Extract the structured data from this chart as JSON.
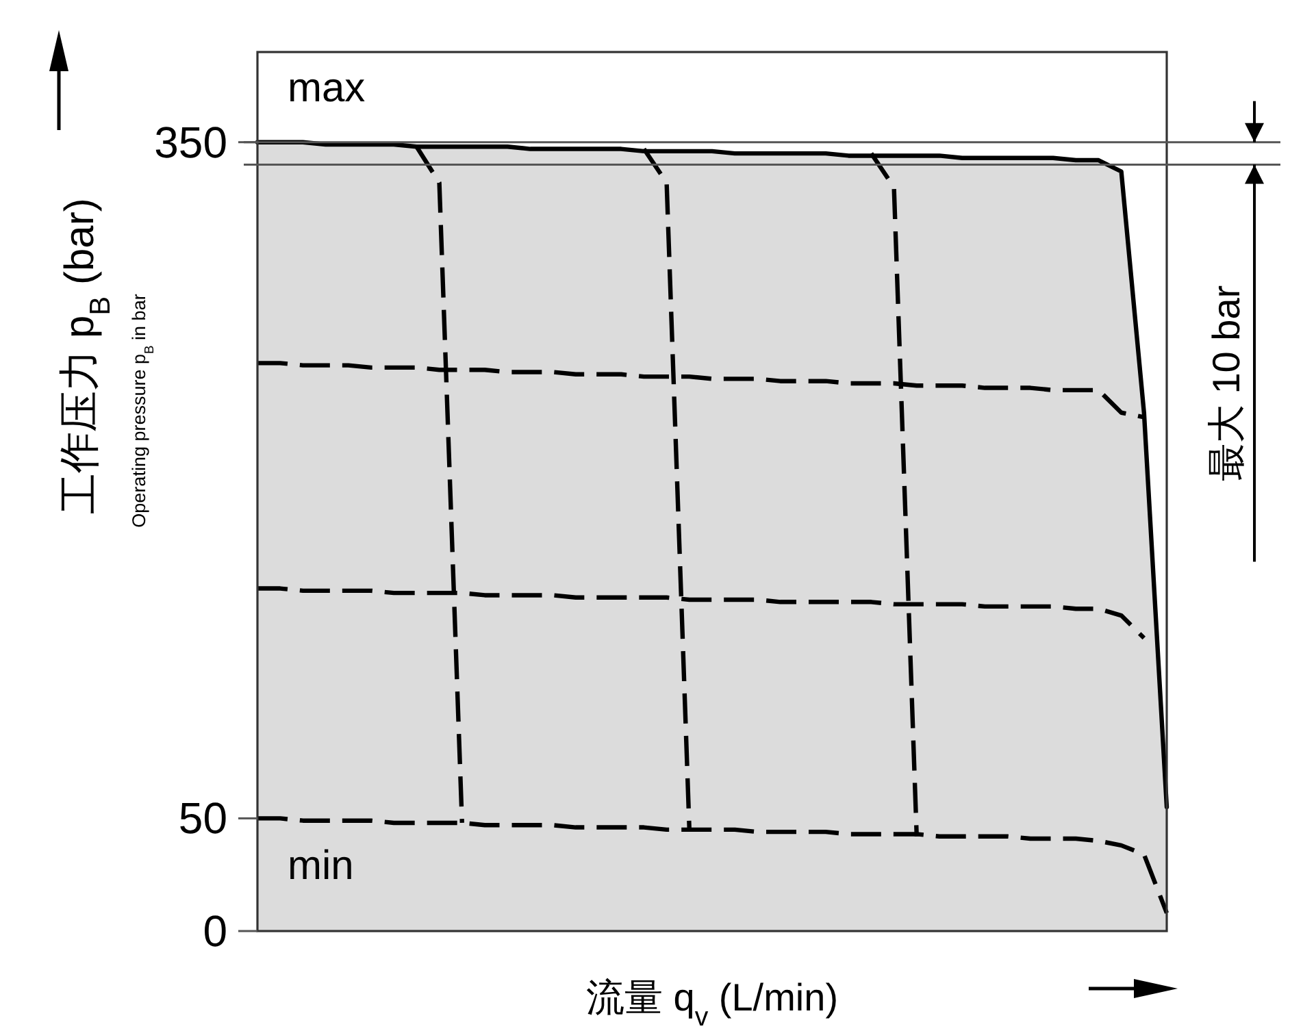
{
  "chart_data": {
    "type": "line",
    "ylabel": "工作压力 p$_{B}$ (bar)",
    "xlabel": "流量 q$_{v}$ (L/min)",
    "annotations": [
      "max",
      "min",
      "Operating pressure p$_{B}$ in bar",
      "最大 10 bar"
    ],
    "categories": [
      null,
      null,
      null,
      null,
      null,
      null,
      null,
      null,
      null,
      null,
      null,
      null,
      null,
      null,
      null,
      null,
      null,
      null,
      null,
      null,
      null,
      null,
      null,
      null,
      null,
      null,
      null,
      null,
      null,
      null,
      null,
      null,
      null,
      null,
      null,
      null,
      null,
      null,
      null,
      null,
      null
    ],
    "series": [
      {
        "type": "area",
        "color": "#dcdcdc",
        "line_style": "solid",
        "values": [
          350,
          350,
          350,
          349,
          349,
          349,
          349,
          348,
          348,
          348,
          348,
          348,
          347,
          347,
          347,
          347,
          347,
          346,
          346,
          346,
          346,
          345,
          345,
          345,
          345,
          345,
          344,
          344,
          344,
          344,
          344,
          343,
          343,
          343,
          343,
          343,
          342,
          342,
          337,
          230,
          55
        ]
      },
      {
        "color": "#000000",
        "line_style": "dashed",
        "values": [
          252,
          252,
          251,
          251,
          251,
          250,
          250,
          250,
          249,
          249,
          249,
          248,
          248,
          248,
          247,
          247,
          247,
          246,
          246,
          246,
          245,
          245,
          245,
          244,
          244,
          244,
          243,
          243,
          243,
          242,
          242,
          242,
          241,
          241,
          241,
          240,
          240,
          240,
          230,
          228,
          null
        ]
      },
      {
        "color": "#000000",
        "line_style": "dashed",
        "values": [
          152,
          152,
          151,
          151,
          151,
          151,
          150,
          150,
          150,
          150,
          149,
          149,
          149,
          149,
          148,
          148,
          148,
          148,
          148,
          147,
          147,
          147,
          147,
          146,
          146,
          146,
          146,
          146,
          145,
          145,
          145,
          145,
          144,
          144,
          144,
          144,
          143,
          143,
          140,
          130,
          null
        ]
      },
      {
        "color": "#000000",
        "line_style": "dashed",
        "values": [
          50,
          50,
          49,
          49,
          49,
          49,
          48,
          48,
          48,
          48,
          47,
          47,
          47,
          47,
          46,
          46,
          46,
          46,
          45,
          45,
          45,
          45,
          44,
          44,
          44,
          44,
          43,
          43,
          43,
          43,
          42,
          42,
          42,
          42,
          41,
          41,
          41,
          40,
          38,
          34,
          8
        ]
      },
      {
        "color": "#000000",
        "line_style": "dashed",
        "values": [
          null,
          null,
          null,
          null,
          null,
          null,
          null,
          348,
          332,
          48,
          null,
          null,
          null,
          null,
          null,
          null,
          null,
          null,
          null,
          null,
          null,
          null,
          null,
          null,
          null,
          null,
          null,
          null,
          null,
          null,
          null,
          null,
          null,
          null,
          null,
          null,
          null,
          null,
          null,
          null,
          null
        ]
      },
      {
        "color": "#000000",
        "line_style": "dashed",
        "values": [
          null,
          null,
          null,
          null,
          null,
          null,
          null,
          null,
          null,
          null,
          null,
          null,
          null,
          null,
          null,
          null,
          null,
          347,
          332,
          45,
          null,
          null,
          null,
          null,
          null,
          null,
          null,
          null,
          null,
          null,
          null,
          null,
          null,
          null,
          null,
          null,
          null,
          null,
          null,
          null,
          null
        ]
      },
      {
        "color": "#000000",
        "line_style": "dashed",
        "values": [
          null,
          null,
          null,
          null,
          null,
          null,
          null,
          null,
          null,
          null,
          null,
          null,
          null,
          null,
          null,
          null,
          null,
          null,
          null,
          null,
          null,
          null,
          null,
          null,
          null,
          null,
          null,
          345,
          330,
          42,
          null,
          null,
          null,
          null,
          null,
          null,
          null,
          null,
          null,
          null,
          null
        ]
      }
    ],
    "ylim": [
      0,
      390
    ],
    "yticks": [
      0,
      50,
      350
    ],
    "ref_lines": [
      {
        "axis": "y",
        "value": 350,
        "color": "#555555"
      },
      {
        "axis": "y",
        "value": 340,
        "color": "#555555"
      }
    ],
    "tick_labels": "y",
    "grid": false,
    "marker": "none"
  }
}
